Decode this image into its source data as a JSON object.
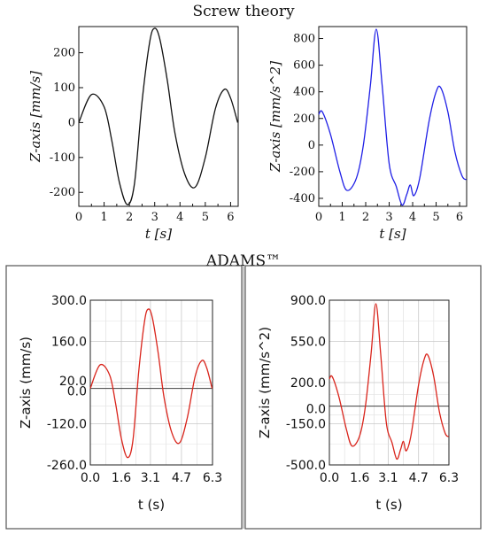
{
  "screw_section_title": "Screw theory",
  "adams_section_title": "ADAMS™",
  "chart_data": [
    {
      "type": "line",
      "group": "Screw theory",
      "xlabel": "t [s]",
      "ylabel": "Z-axis [mm/s]",
      "xlim": [
        0,
        6.3
      ],
      "ylim": [
        -240,
        275
      ],
      "xticks": [
        0,
        1,
        2,
        3,
        4,
        5,
        6
      ],
      "yticks": [
        -200,
        -100,
        0,
        100,
        200
      ],
      "color": "#111111",
      "grid": false,
      "x": [
        0,
        0.5,
        1.0,
        1.3,
        1.6,
        1.92,
        2.2,
        2.5,
        2.8,
        2.99,
        3.2,
        3.5,
        3.8,
        4.2,
        4.6,
        5.0,
        5.4,
        5.75,
        6.0,
        6.28
      ],
      "y": [
        0,
        80,
        45,
        -50,
        -170,
        -235,
        -175,
        60,
        230,
        270,
        240,
        120,
        -30,
        -150,
        -185,
        -100,
        40,
        95,
        70,
        0
      ]
    },
    {
      "type": "line",
      "group": "Screw theory",
      "xlabel": "t [s]",
      "ylabel": "Z-axis [mm/s^2]",
      "xlim": [
        0,
        6.3
      ],
      "ylim": [
        -460,
        890
      ],
      "xticks": [
        0,
        1,
        2,
        3,
        4,
        5,
        6
      ],
      "yticks": [
        -400,
        -200,
        0,
        200,
        400,
        600,
        800
      ],
      "color": "#1f1fe6",
      "grid": false,
      "x": [
        0,
        0.15,
        0.5,
        0.9,
        1.2,
        1.6,
        1.9,
        2.2,
        2.45,
        2.7,
        3.0,
        3.3,
        3.55,
        3.75,
        3.9,
        4.05,
        4.3,
        4.7,
        5.0,
        5.2,
        5.5,
        5.8,
        6.1,
        6.28
      ],
      "y": [
        230,
        250,
        80,
        -200,
        -340,
        -250,
        0,
        450,
        870,
        450,
        -140,
        -310,
        -450,
        -370,
        -300,
        -380,
        -250,
        180,
        400,
        430,
        250,
        -50,
        -230,
        -260
      ]
    },
    {
      "type": "line",
      "group": "ADAMS™",
      "xlabel": "t (s)",
      "ylabel": "Z-axis (mm/s)",
      "xlim": [
        0,
        6.3
      ],
      "ylim": [
        -260,
        300
      ],
      "xticks": [
        "0.0",
        "1.6",
        "3.1",
        "4.7",
        "6.3"
      ],
      "yticks": [
        "-260.0",
        "-120.0",
        "0.0",
        "20.0",
        "160.0",
        "300.0"
      ],
      "color": "#d9241b",
      "grid": true,
      "x": [
        0,
        0.5,
        1.0,
        1.3,
        1.6,
        1.92,
        2.2,
        2.5,
        2.8,
        2.99,
        3.2,
        3.5,
        3.8,
        4.2,
        4.6,
        5.0,
        5.4,
        5.75,
        6.0,
        6.28
      ],
      "y": [
        0,
        80,
        45,
        -50,
        -170,
        -235,
        -175,
        60,
        230,
        270,
        240,
        120,
        -30,
        -150,
        -185,
        -100,
        40,
        95,
        70,
        0
      ]
    },
    {
      "type": "line",
      "group": "ADAMS™",
      "xlabel": "t (s)",
      "ylabel": "Z-axis (mm/s^2)",
      "xlim": [
        0,
        6.3
      ],
      "ylim": [
        -500,
        900
      ],
      "xticks": [
        "0.0",
        "1.6",
        "3.1",
        "4.7",
        "6.3"
      ],
      "yticks": [
        "-500.0",
        "-150.0",
        "0.0",
        "200.0",
        "550.0",
        "900.0"
      ],
      "color": "#d9241b",
      "grid": true,
      "x": [
        0,
        0.15,
        0.5,
        0.9,
        1.2,
        1.6,
        1.9,
        2.2,
        2.45,
        2.7,
        3.0,
        3.3,
        3.55,
        3.75,
        3.9,
        4.05,
        4.3,
        4.7,
        5.0,
        5.2,
        5.5,
        5.8,
        6.1,
        6.28
      ],
      "y": [
        230,
        250,
        80,
        -200,
        -340,
        -250,
        0,
        450,
        870,
        450,
        -140,
        -310,
        -450,
        -370,
        -300,
        -380,
        -250,
        180,
        400,
        430,
        250,
        -50,
        -230,
        -260
      ]
    }
  ]
}
